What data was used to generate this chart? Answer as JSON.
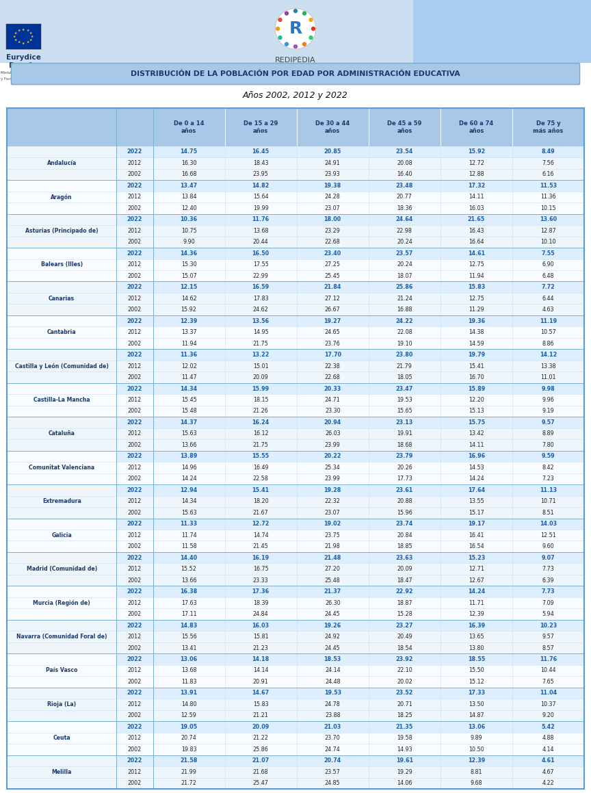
{
  "title_line1": "DISTRIBUCIÓN DE LA POBLACIÓN POR EDAD POR ADMINISTRACIÓN EDUCATIVA",
  "title_line2": "Años 2002, 2012 y 2022",
  "col_headers": [
    "De 0 a 14\naños",
    "De 15 a 29\naños",
    "De 30 a 44\naños",
    "De 45 a 59\naños",
    "De 60 a 74\naños",
    "De 75 y\nmás años"
  ],
  "regions": [
    "Andalucía",
    "Aragón",
    "Asturias (Principado de)",
    "Balears (Illes)",
    "Canarias",
    "Cantabria",
    "Castilla y León (Comunidad de)",
    "Castilla-La Mancha",
    "Cataluña",
    "Comunitat Valenciana",
    "Extremadura",
    "Galicia",
    "Madrid (Comunidad de)",
    "Murcia (Región de)",
    "Navarra (Comunidad Foral de)",
    "País Vasco",
    "Rioja (La)",
    "Ceuta",
    "Melilla"
  ],
  "data": {
    "Andalucía": {
      "2022": [
        14.75,
        16.45,
        20.85,
        23.54,
        15.92,
        8.49
      ],
      "2012": [
        16.3,
        18.43,
        24.91,
        20.08,
        12.72,
        7.56
      ],
      "2002": [
        16.68,
        23.95,
        23.93,
        16.4,
        12.88,
        6.16
      ]
    },
    "Aragón": {
      "2022": [
        13.47,
        14.82,
        19.38,
        23.48,
        17.32,
        11.53
      ],
      "2012": [
        13.84,
        15.64,
        24.28,
        20.77,
        14.11,
        11.36
      ],
      "2002": [
        12.4,
        19.99,
        23.07,
        18.36,
        16.03,
        10.15
      ]
    },
    "Asturias (Principado de)": {
      "2022": [
        10.36,
        11.76,
        18.0,
        24.64,
        21.65,
        13.6
      ],
      "2012": [
        10.75,
        13.68,
        23.29,
        22.98,
        16.43,
        12.87
      ],
      "2002": [
        9.9,
        20.44,
        22.68,
        20.24,
        16.64,
        10.1
      ]
    },
    "Balears (Illes)": {
      "2022": [
        14.36,
        16.5,
        23.4,
        23.57,
        14.61,
        7.55
      ],
      "2012": [
        15.3,
        17.55,
        27.25,
        20.24,
        12.75,
        6.9
      ],
      "2002": [
        15.07,
        22.99,
        25.45,
        18.07,
        11.94,
        6.48
      ]
    },
    "Canarias": {
      "2022": [
        12.15,
        16.59,
        21.84,
        25.86,
        15.83,
        7.72
      ],
      "2012": [
        14.62,
        17.83,
        27.12,
        21.24,
        12.75,
        6.44
      ],
      "2002": [
        15.92,
        24.62,
        26.67,
        16.88,
        11.29,
        4.63
      ]
    },
    "Cantabria": {
      "2022": [
        12.39,
        13.56,
        19.27,
        24.22,
        19.36,
        11.19
      ],
      "2012": [
        13.37,
        14.95,
        24.65,
        22.08,
        14.38,
        10.57
      ],
      "2002": [
        11.94,
        21.75,
        23.76,
        19.1,
        14.59,
        8.86
      ]
    },
    "Castilla y León (Comunidad de)": {
      "2022": [
        11.36,
        13.22,
        17.7,
        23.8,
        19.79,
        14.12
      ],
      "2012": [
        12.02,
        15.01,
        22.38,
        21.79,
        15.41,
        13.38
      ],
      "2002": [
        11.47,
        20.09,
        22.68,
        18.05,
        16.7,
        11.01
      ]
    },
    "Castilla-La Mancha": {
      "2022": [
        14.34,
        15.99,
        20.33,
        23.47,
        15.89,
        9.98
      ],
      "2012": [
        15.45,
        18.15,
        24.71,
        19.53,
        12.2,
        9.96
      ],
      "2002": [
        15.48,
        21.26,
        23.3,
        15.65,
        15.13,
        9.19
      ]
    },
    "Cataluña": {
      "2022": [
        14.37,
        16.24,
        20.94,
        23.13,
        15.75,
        9.57
      ],
      "2012": [
        15.63,
        16.12,
        26.03,
        19.91,
        13.42,
        8.89
      ],
      "2002": [
        13.66,
        21.75,
        23.99,
        18.68,
        14.11,
        7.8
      ]
    },
    "Comunitat Valenciana": {
      "2022": [
        13.89,
        15.55,
        20.22,
        23.79,
        16.96,
        9.59
      ],
      "2012": [
        14.96,
        16.49,
        25.34,
        20.26,
        14.53,
        8.42
      ],
      "2002": [
        14.24,
        22.58,
        23.99,
        17.73,
        14.24,
        7.23
      ]
    },
    "Extremadura": {
      "2022": [
        12.94,
        15.41,
        19.28,
        23.61,
        17.64,
        11.13
      ],
      "2012": [
        14.34,
        18.2,
        22.32,
        20.88,
        13.55,
        10.71
      ],
      "2002": [
        15.63,
        21.67,
        23.07,
        15.96,
        15.17,
        8.51
      ]
    },
    "Galicia": {
      "2022": [
        11.33,
        12.72,
        19.02,
        23.74,
        19.17,
        14.03
      ],
      "2012": [
        11.74,
        14.74,
        23.75,
        20.84,
        16.41,
        12.51
      ],
      "2002": [
        11.58,
        21.45,
        21.98,
        18.85,
        16.54,
        9.6
      ]
    },
    "Madrid (Comunidad de)": {
      "2022": [
        14.4,
        16.19,
        21.48,
        23.63,
        15.23,
        9.07
      ],
      "2012": [
        15.52,
        16.75,
        27.2,
        20.09,
        12.71,
        7.73
      ],
      "2002": [
        13.66,
        23.33,
        25.48,
        18.47,
        12.67,
        6.39
      ]
    },
    "Murcia (Región de)": {
      "2022": [
        16.38,
        17.36,
        21.37,
        22.92,
        14.24,
        7.73
      ],
      "2012": [
        17.63,
        18.39,
        26.3,
        18.87,
        11.71,
        7.09
      ],
      "2002": [
        17.11,
        24.84,
        24.45,
        15.28,
        12.39,
        5.94
      ]
    },
    "Navarra (Comunidad Foral de)": {
      "2022": [
        14.83,
        16.03,
        19.26,
        23.27,
        16.39,
        10.23
      ],
      "2012": [
        15.56,
        15.81,
        24.92,
        20.49,
        13.65,
        9.57
      ],
      "2002": [
        13.41,
        21.23,
        24.45,
        18.54,
        13.8,
        8.57
      ]
    },
    "País Vasco": {
      "2022": [
        13.06,
        14.18,
        18.53,
        23.92,
        18.55,
        11.76
      ],
      "2012": [
        13.68,
        14.14,
        24.14,
        22.1,
        15.5,
        10.44
      ],
      "2002": [
        11.83,
        20.91,
        24.48,
        20.02,
        15.12,
        7.65
      ]
    },
    "Rioja (La)": {
      "2022": [
        13.91,
        14.67,
        19.53,
        23.52,
        17.33,
        11.04
      ],
      "2012": [
        14.8,
        15.83,
        24.78,
        20.71,
        13.5,
        10.37
      ],
      "2002": [
        12.59,
        21.21,
        23.88,
        18.25,
        14.87,
        9.2
      ]
    },
    "Ceuta": {
      "2022": [
        19.05,
        20.09,
        21.03,
        21.35,
        13.06,
        5.42
      ],
      "2012": [
        20.74,
        21.22,
        23.7,
        19.58,
        9.89,
        4.88
      ],
      "2002": [
        19.83,
        25.86,
        24.74,
        14.93,
        10.5,
        4.14
      ]
    },
    "Melilla": {
      "2022": [
        21.58,
        21.07,
        20.74,
        19.61,
        12.39,
        4.61
      ],
      "2012": [
        21.99,
        21.68,
        23.57,
        19.29,
        8.81,
        4.67
      ],
      "2002": [
        21.72,
        25.47,
        24.85,
        14.06,
        9.68,
        4.22
      ]
    }
  },
  "header_bg": "#a8c8e8",
  "row_2022_bg": "#ddeeff",
  "title_bg": "#a8c8e8",
  "title_border": "#7aadd0",
  "outer_border": "#5b9bd5",
  "inner_border_light": "#c8dff0",
  "inner_border_dark": "#7aadd0",
  "year_2022_color": "#1a5fa8",
  "year_other_color": "#222222",
  "header_text_color": "#1a3a6b",
  "data_2022_color": "#1a5fa8",
  "data_other_color": "#222222",
  "region_text_color": "#1a3a6b",
  "top_bg": "#ccdff0"
}
